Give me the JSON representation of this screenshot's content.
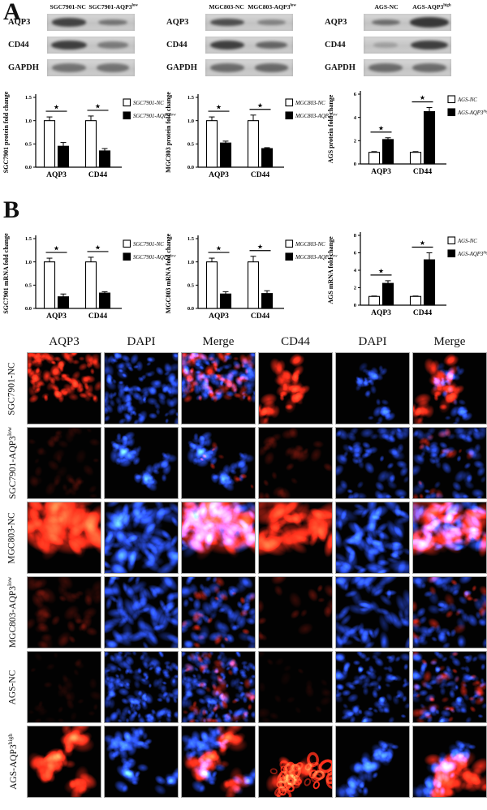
{
  "figure": {
    "panel_a": "A",
    "panel_b": "B"
  },
  "colors": {
    "red": "#ff2d19",
    "blue": "#2348ff",
    "band": "#303030",
    "blot_bg": "#cccccc",
    "bar_white": "#ffffff",
    "bar_black": "#000000"
  },
  "blots": [
    {
      "col_headers": [
        {
          "text": "SGC7901-NC",
          "sup": ""
        },
        {
          "text": "SGC7901-AQP3",
          "sup": "low"
        }
      ],
      "rows": [
        {
          "label": "AQP3",
          "bands": [
            {
              "w": 0.85,
              "o": 0.88,
              "h": 0.48
            },
            {
              "w": 0.72,
              "o": 0.55,
              "h": 0.36
            }
          ]
        },
        {
          "label": "CD44",
          "bands": [
            {
              "w": 0.88,
              "o": 0.9,
              "h": 0.55
            },
            {
              "w": 0.75,
              "o": 0.5,
              "h": 0.4
            }
          ]
        },
        {
          "label": "GAPDH",
          "bands": [
            {
              "w": 0.85,
              "o": 0.55,
              "h": 0.5
            },
            {
              "w": 0.8,
              "o": 0.55,
              "h": 0.5
            }
          ]
        }
      ]
    },
    {
      "col_headers": [
        {
          "text": "MGC803-NC",
          "sup": ""
        },
        {
          "text": "MGC803-AQP3",
          "sup": "low"
        }
      ],
      "rows": [
        {
          "label": "AQP3",
          "bands": [
            {
              "w": 0.85,
              "o": 0.8,
              "h": 0.46
            },
            {
              "w": 0.7,
              "o": 0.45,
              "h": 0.36
            }
          ]
        },
        {
          "label": "CD44",
          "bands": [
            {
              "w": 0.85,
              "o": 0.9,
              "h": 0.52
            },
            {
              "w": 0.78,
              "o": 0.65,
              "h": 0.42
            }
          ]
        },
        {
          "label": "GAPDH",
          "bands": [
            {
              "w": 0.85,
              "o": 0.6,
              "h": 0.5
            },
            {
              "w": 0.82,
              "o": 0.62,
              "h": 0.5
            }
          ]
        }
      ]
    },
    {
      "col_headers": [
        {
          "text": "AGS-NC",
          "sup": ""
        },
        {
          "text": "AGS-AQP3",
          "sup": "high"
        }
      ],
      "rows": [
        {
          "label": "AQP3",
          "bands": [
            {
              "w": 0.7,
              "o": 0.6,
              "h": 0.34
            },
            {
              "w": 0.96,
              "o": 0.95,
              "h": 0.6
            }
          ]
        },
        {
          "label": "CD44",
          "bands": [
            {
              "w": 0.6,
              "o": 0.25,
              "h": 0.3
            },
            {
              "w": 0.92,
              "o": 0.9,
              "h": 0.55
            }
          ]
        },
        {
          "label": "GAPDH",
          "bands": [
            {
              "w": 0.85,
              "o": 0.6,
              "h": 0.5
            },
            {
              "w": 0.85,
              "o": 0.6,
              "h": 0.5
            }
          ]
        }
      ]
    }
  ],
  "chart_data": [
    {
      "type": "bar",
      "panel": "A",
      "ylabel": "SGC7901 protein fold change",
      "categories": [
        "AQP3",
        "CD44"
      ],
      "ymax": 1.5,
      "yticks": [
        0,
        0.5,
        1,
        1.5
      ],
      "tick_dec": 1,
      "series": [
        {
          "name": "SGC7901-NC",
          "sup": "",
          "fill": "#ffffff",
          "values": [
            1.0,
            1.0
          ],
          "err": [
            0.08,
            0.1
          ]
        },
        {
          "name": "SGC7901-AQP3",
          "sup": "low",
          "fill": "#000000",
          "values": [
            0.45,
            0.35
          ],
          "err": [
            0.08,
            0.05
          ]
        }
      ],
      "sig": [
        "★",
        "★"
      ]
    },
    {
      "type": "bar",
      "panel": "A",
      "ylabel": "MGC803 protein fold change",
      "categories": [
        "AQP3",
        "CD44"
      ],
      "ymax": 1.5,
      "yticks": [
        0,
        0.5,
        1,
        1.5
      ],
      "tick_dec": 1,
      "series": [
        {
          "name": "MGC803-NC",
          "sup": "",
          "fill": "#ffffff",
          "values": [
            1.0,
            1.0
          ],
          "err": [
            0.08,
            0.12
          ]
        },
        {
          "name": "MGC803-AQP3",
          "sup": "low",
          "fill": "#000000",
          "values": [
            0.52,
            0.4
          ],
          "err": [
            0.04,
            0.02
          ]
        }
      ],
      "sig": [
        "★",
        "★"
      ]
    },
    {
      "type": "bar",
      "panel": "A",
      "ylabel": "AGS protein fold change",
      "categories": [
        "AQP3",
        "CD44"
      ],
      "ymax": 6,
      "yticks": [
        0,
        2,
        4,
        6
      ],
      "tick_dec": 0,
      "series": [
        {
          "name": "AGS-NC",
          "sup": "",
          "fill": "#ffffff",
          "values": [
            1.0,
            1.0
          ],
          "err": [
            0.06,
            0.06
          ]
        },
        {
          "name": "AGS-AQP3",
          "sup": "high",
          "fill": "#000000",
          "values": [
            2.1,
            4.5
          ],
          "err": [
            0.15,
            0.35
          ]
        }
      ],
      "sig": [
        "★",
        "★"
      ]
    },
    {
      "type": "bar",
      "panel": "B",
      "ylabel": "SGC7901 mRNA fold change",
      "categories": [
        "AQP3",
        "CD44"
      ],
      "ymax": 1.5,
      "yticks": [
        0,
        0.5,
        1,
        1.5
      ],
      "tick_dec": 1,
      "series": [
        {
          "name": "SGC7901-NC",
          "sup": "",
          "fill": "#ffffff",
          "values": [
            1.0,
            1.0
          ],
          "err": [
            0.08,
            0.1
          ]
        },
        {
          "name": "SGC7901-AQP3",
          "sup": "low",
          "fill": "#000000",
          "values": [
            0.25,
            0.33
          ],
          "err": [
            0.06,
            0.03
          ]
        }
      ],
      "sig": [
        "★",
        "★"
      ]
    },
    {
      "type": "bar",
      "panel": "B",
      "ylabel": "MGC803 mRNA fold change",
      "categories": [
        "AQP3",
        "CD44"
      ],
      "ymax": 1.5,
      "yticks": [
        0,
        0.5,
        1,
        1.5
      ],
      "tick_dec": 1,
      "series": [
        {
          "name": "MGC803-NC",
          "sup": "",
          "fill": "#ffffff",
          "values": [
            1.0,
            1.0
          ],
          "err": [
            0.08,
            0.12
          ]
        },
        {
          "name": "MGC803-AQP3",
          "sup": "low",
          "fill": "#000000",
          "values": [
            0.31,
            0.32
          ],
          "err": [
            0.05,
            0.06
          ]
        }
      ],
      "sig": [
        "★",
        "★"
      ]
    },
    {
      "type": "bar",
      "panel": "B",
      "ylabel": "AGS mRNA fold change",
      "categories": [
        "AQP3",
        "CD44"
      ],
      "ymax": 8,
      "yticks": [
        0,
        2,
        4,
        6,
        8
      ],
      "tick_dec": 0,
      "series": [
        {
          "name": "AGS-NC",
          "sup": "",
          "fill": "#ffffff",
          "values": [
            1.0,
            1.0
          ],
          "err": [
            0.05,
            0.05
          ]
        },
        {
          "name": "AGS-AQP3",
          "sup": "high",
          "fill": "#000000",
          "values": [
            2.5,
            5.2
          ],
          "err": [
            0.3,
            0.8
          ]
        }
      ],
      "sig": [
        "★",
        "★"
      ]
    }
  ],
  "if_grid": {
    "col_headers": [
      "AQP3",
      "DAPI",
      "Merge",
      "CD44",
      "DAPI",
      "Merge"
    ],
    "rows": [
      {
        "label": "SGC7901-NC",
        "sup": "",
        "cells": [
          {
            "red": [
              95,
              0.95,
              3.2,
              11
            ],
            "top": 1
          },
          {
            "blue": [
              115,
              0.9,
              3.0,
              12
            ]
          },
          {
            "red": [
              80,
              0.8,
              3.0,
              11
            ],
            "blue": [
              115,
              0.85,
              3.0,
              12
            ],
            "top": 1
          },
          {
            "red": [
              45,
              0.95,
              4.0,
              14
            ],
            "cluster": 1
          },
          {
            "blue": [
              40,
              0.85,
              3.0,
              15
            ],
            "cluster": 1
          },
          {
            "red": [
              45,
              0.9,
              4.0,
              14
            ],
            "blue": [
              40,
              0.8,
              3.0,
              15
            ],
            "cluster": 1
          }
        ]
      },
      {
        "label": "SGC7901-AQP3",
        "sup": "low",
        "cells": [
          {
            "red": [
              40,
              0.16,
              3.5,
              21
            ]
          },
          {
            "blue": [
              60,
              0.9,
              3.6,
              22
            ],
            "cluster": 1
          },
          {
            "red": [
              10,
              0.75,
              2.2,
              21
            ],
            "blue": [
              60,
              0.85,
              3.6,
              22
            ],
            "cluster": 1
          },
          {
            "red": [
              28,
              0.3,
              3.5,
              24
            ]
          },
          {
            "blue": [
              62,
              0.85,
              3.4,
              25
            ]
          },
          {
            "red": [
              18,
              0.6,
              2.6,
              24
            ],
            "blue": [
              62,
              0.8,
              3.4,
              25
            ]
          }
        ]
      },
      {
        "label": "MGC803-NC",
        "sup": "",
        "cells": [
          {
            "red": [
              50,
              1.0,
              6.5,
              31
            ],
            "el": 1,
            "top": 1
          },
          {
            "blue": [
              75,
              1.0,
              4.2,
              32
            ],
            "el": 1
          },
          {
            "red": [
              50,
              0.9,
              6.5,
              31
            ],
            "blue": [
              75,
              0.9,
              4.2,
              32
            ],
            "el": 1,
            "top": 1
          },
          {
            "red": [
              45,
              1.0,
              6.0,
              34
            ],
            "el": 1,
            "top": 1
          },
          {
            "blue": [
              75,
              0.95,
              4.0,
              35
            ],
            "el": 1
          },
          {
            "red": [
              45,
              0.95,
              6.0,
              34
            ],
            "blue": [
              75,
              0.9,
              4.0,
              35
            ],
            "el": 1,
            "top": 1
          }
        ]
      },
      {
        "label": "MGC803-AQP3",
        "sup": "low",
        "cells": [
          {
            "red": [
              40,
              0.28,
              4.5,
              41
            ]
          },
          {
            "blue": [
              68,
              0.9,
              3.8,
              42
            ],
            "el": 1
          },
          {
            "red": [
              22,
              0.7,
              3.0,
              41
            ],
            "blue": [
              68,
              0.85,
              3.8,
              42
            ]
          },
          {
            "red": [
              16,
              0.4,
              4.0,
              44
            ]
          },
          {
            "blue": [
              58,
              0.9,
              3.6,
              45
            ],
            "el": 1
          },
          {
            "red": [
              20,
              0.7,
              3.4,
              44
            ],
            "blue": [
              58,
              0.85,
              3.6,
              45
            ]
          }
        ]
      },
      {
        "label": "AGS-NC",
        "sup": "",
        "cells": [
          {
            "red": [
              30,
              0.13,
              3.5,
              51
            ]
          },
          {
            "blue": [
              150,
              0.85,
              2.8,
              52
            ]
          },
          {
            "red": [
              45,
              0.7,
              3.4,
              51
            ],
            "blue": [
              150,
              0.8,
              2.8,
              52
            ]
          },
          {
            "red": [
              20,
              0.12,
              3.5,
              54
            ]
          },
          {
            "blue": [
              95,
              0.85,
              3.0,
              55
            ]
          },
          {
            "red": [
              38,
              0.65,
              3.2,
              54
            ],
            "blue": [
              95,
              0.8,
              3.0,
              55
            ]
          }
        ]
      },
      {
        "label": "AGS-AQP3",
        "sup": "high",
        "cells": [
          {
            "red": [
              50,
              1.0,
              5.5,
              61
            ],
            "cluster": 1
          },
          {
            "blue": [
              60,
              0.95,
              3.8,
              62
            ],
            "cluster": 1
          },
          {
            "red": [
              50,
              0.85,
              5.0,
              61
            ],
            "blue": [
              60,
              0.85,
              3.8,
              62
            ],
            "cluster": 1
          },
          {
            "red": [
              50,
              1.0,
              5.5,
              64
            ],
            "cluster": 1,
            "ring": 1
          },
          {
            "blue": [
              58,
              0.9,
              3.8,
              65
            ],
            "cluster": 1
          },
          {
            "red": [
              50,
              0.9,
              5.0,
              64
            ],
            "blue": [
              58,
              0.85,
              3.8,
              65
            ],
            "cluster": 1
          }
        ]
      }
    ]
  }
}
